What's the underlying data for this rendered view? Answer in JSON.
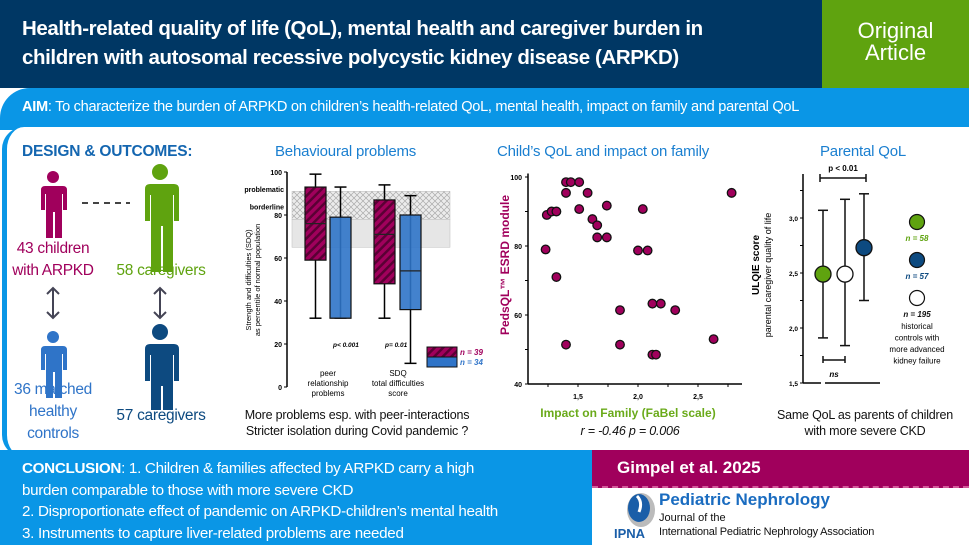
{
  "header": {
    "title_line1": "Health-related quality of life (QoL), mental health and caregiver burden in",
    "title_line2": "children with autosomal recessive polycystic kidney disease (ARPKD)",
    "badge_line1": "Original",
    "badge_line2": "Article"
  },
  "aim": {
    "label": "AIM",
    "text": ": To characterize the burden of ARPKD on children’s health-related QoL, mental health, impact on family and parental QoL"
  },
  "design": {
    "title": "DESIGN & OUTCOMES:",
    "children": [
      "43 children",
      "with ARPKD"
    ],
    "caregivers1": "58 caregivers",
    "controls": [
      "36 matched",
      "healthy",
      "controls"
    ],
    "caregivers2": "57 caregivers"
  },
  "behavioural": {
    "title": "Behavioural problems",
    "caption1": "More problems esp. with peer-interactions",
    "caption2": "Stricter isolation during Covid pandemic ?"
  },
  "child_qol": {
    "title": "Child’s QoL and impact on family",
    "stat": "r = -0.46 p = 0.006"
  },
  "parental": {
    "title": "Parental QoL",
    "caption1": "Same QoL as parents of children",
    "caption2": "with more severe CKD"
  },
  "conclusion": {
    "lines": [
      "CONCLUSION: 1. Children & families affected by ARPKD carry a high",
      "burden comparable to those with more severe CKD",
      "2. Disproportionate effect of pandemic on ARPKD-children’s mental health",
      "3. Instruments to capture liver-related problems are needed"
    ],
    "label": "CONCLUSION"
  },
  "citation": "Gimpel et al. 2025",
  "journal": {
    "name": "Pediatric Nephrology",
    "sub1": "Journal of the",
    "sub2": "International Pediatric Nephrology Association",
    "logo_text": "IPNA"
  },
  "colors": {
    "navy": "#003764",
    "green": "#5fa30f",
    "blue": "#0a96e6",
    "magenta": "#a0005c",
    "ctrl_blue": "#2f74c8",
    "dark_blue": "#0d4a80"
  },
  "chart_data": [
    {
      "type": "box",
      "title": "Behavioural problems",
      "ylabel": [
        "Strength and difficulties (SDQ)",
        "as percentile of normal population"
      ],
      "ylim": [
        0,
        100
      ],
      "yticks": [
        0,
        20,
        40,
        60,
        80,
        100
      ],
      "bands": [
        {
          "label": "problematic",
          "range": [
            78,
            91
          ],
          "pattern": "crosshatch"
        },
        {
          "label": "borderline",
          "range": [
            65,
            78
          ]
        }
      ],
      "categories": [
        [
          "peer",
          "relationship",
          "problems"
        ],
        [
          "SDQ",
          "total difficulties",
          "score"
        ]
      ],
      "pvalues": [
        "p< 0.001",
        "p= 0.01"
      ],
      "series": [
        {
          "name": "n = 39",
          "color": "#a0005c",
          "boxes": [
            {
              "min": 32,
              "q1": 59,
              "median": 76,
              "q3": 93,
              "max": 99
            },
            {
              "min": 32,
              "q1": 48,
              "median": 71,
              "q3": 87,
              "max": 94
            }
          ]
        },
        {
          "name": "n = 34",
          "color": "#2f74c8",
          "boxes": [
            {
              "min": 32,
              "q1": 32,
              "median": 32,
              "q3": 79,
              "max": 93
            },
            {
              "min": 11,
              "q1": 36,
              "median": 54,
              "q3": 80,
              "max": 89
            }
          ]
        }
      ]
    },
    {
      "type": "scatter",
      "title": "Child’s QoL and impact on family",
      "xlabel": "Impact on Family (FaBel scale)",
      "ylabel": "PedsQL™ ESRD module",
      "xticks": [
        "1,5",
        "2,0",
        "2,5"
      ],
      "xtick_values": [
        1.5,
        2.0,
        2.5
      ],
      "yticks": [
        40,
        60,
        80,
        100
      ],
      "xlim": [
        1.2,
        2.85
      ],
      "ylim": [
        40,
        100
      ],
      "points": [
        [
          1.23,
          79
        ],
        [
          1.24,
          89
        ],
        [
          1.28,
          90
        ],
        [
          1.32,
          90
        ],
        [
          1.32,
          71
        ],
        [
          1.4,
          98.5
        ],
        [
          1.44,
          98.5
        ],
        [
          1.51,
          98.5
        ],
        [
          1.4,
          95.4
        ],
        [
          1.58,
          95.4
        ],
        [
          1.51,
          90.7
        ],
        [
          1.62,
          87.8
        ],
        [
          1.66,
          86
        ],
        [
          1.66,
          82.5
        ],
        [
          1.74,
          82.5
        ],
        [
          1.74,
          91.7
        ],
        [
          1.4,
          51.4
        ],
        [
          1.85,
          61.4
        ],
        [
          1.85,
          51.4
        ],
        [
          2.0,
          78.7
        ],
        [
          2.08,
          78.7
        ],
        [
          2.04,
          90.7
        ],
        [
          2.12,
          63.3
        ],
        [
          2.19,
          63.3
        ],
        [
          2.31,
          61.4
        ],
        [
          2.12,
          48.5
        ],
        [
          2.15,
          48.5
        ],
        [
          2.63,
          53
        ],
        [
          2.78,
          95.4
        ]
      ],
      "color": "#a0005c"
    },
    {
      "type": "errorbar",
      "title": "Parental QoL",
      "ylabel": [
        "ULQIE score",
        "parental caregiver quality of life"
      ],
      "yticks": [
        "1,5",
        "2,0",
        "2,5",
        "3,0"
      ],
      "ytick_values": [
        1.5,
        2.0,
        2.5,
        3.0
      ],
      "ylim": [
        1.5,
        3.4
      ],
      "groups": [
        {
          "label": "n = 58",
          "mean": 2.49,
          "low": 1.91,
          "high": 3.07,
          "color": "#5fa30f"
        },
        {
          "label": "n = 195",
          "mean": 2.49,
          "low": 1.84,
          "high": 3.17,
          "color": "#ffffff",
          "note": [
            "historical",
            "controls with",
            "more advanced",
            "kidney failure"
          ]
        },
        {
          "label": "n = 57",
          "mean": 2.73,
          "low": 2.25,
          "high": 3.22,
          "color": "#0d4a80"
        }
      ],
      "annotations": [
        "p < 0.01",
        "ns"
      ]
    }
  ]
}
